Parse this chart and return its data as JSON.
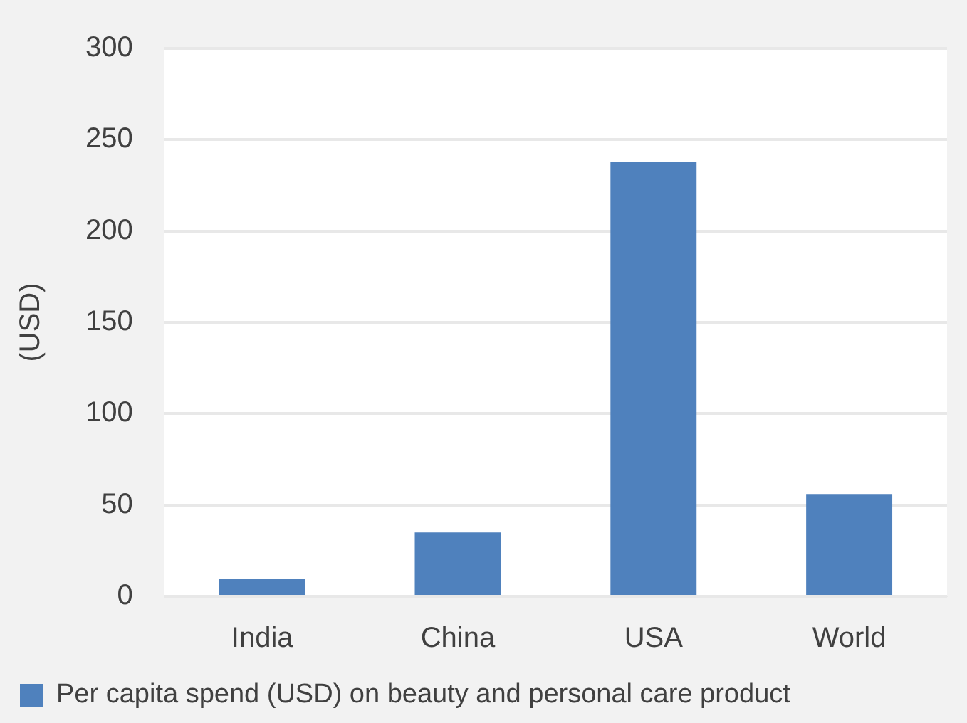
{
  "chart_data": {
    "type": "bar",
    "categories": [
      "India",
      "China",
      "USA",
      "World"
    ],
    "ylabel": "(USD)",
    "series": [
      {
        "name": "Per capita spend (USD) on beauty and personal care product",
        "color": "#4f81bd",
        "values": [
          9.5,
          35,
          238,
          56
        ]
      }
    ],
    "ylim": [
      0,
      300
    ],
    "yticks": [
      0,
      50,
      100,
      150,
      200,
      250,
      300
    ],
    "grid": "y",
    "legend": "bottom"
  }
}
